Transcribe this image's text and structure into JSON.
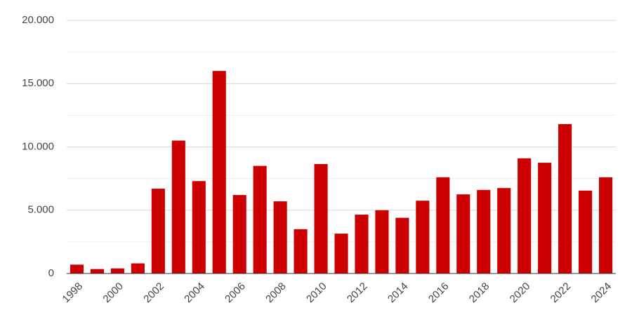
{
  "chart_data": {
    "type": "bar",
    "categories": [
      "1998",
      null,
      "2000",
      null,
      "2002",
      null,
      "2004",
      null,
      "2006",
      null,
      "2008",
      null,
      "2010",
      null,
      "2012",
      null,
      "2014",
      null,
      "2016",
      null,
      "2018",
      null,
      "2020",
      null,
      "2022",
      null,
      "2024"
    ],
    "values": [
      700,
      350,
      400,
      800,
      6700,
      10500,
      7300,
      16000,
      6200,
      8500,
      5700,
      3500,
      8650,
      3150,
      4650,
      5000,
      4400,
      5750,
      7600,
      6250,
      6600,
      6750,
      9100,
      8750,
      11800,
      6550,
      7600
    ],
    "color": "#cc0000",
    "ylim": [
      0,
      20000
    ],
    "yticks": [
      {
        "value": 0,
        "label": "0"
      },
      {
        "value": 5000,
        "label": "5.000"
      },
      {
        "value": 10000,
        "label": "10.000"
      },
      {
        "value": 15000,
        "label": "15.000"
      },
      {
        "value": 20000,
        "label": "20.000"
      }
    ],
    "minor_yticks": [
      2500,
      7500,
      12500,
      17500
    ],
    "grid": true
  }
}
